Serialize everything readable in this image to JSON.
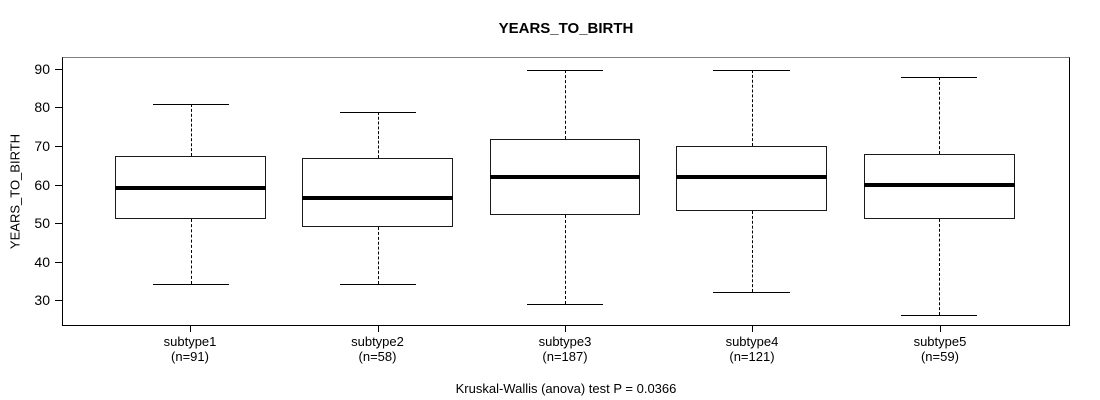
{
  "chart_data": {
    "type": "boxplot",
    "title": "YEARS_TO_BIRTH",
    "ylabel": "YEARS_TO_BIRTH",
    "xlabel": "",
    "ylim": [
      23.4,
      93.0
    ],
    "yticks": [
      30,
      40,
      50,
      60,
      70,
      80,
      90
    ],
    "grid": "off",
    "footnote": "Kruskal-Wallis (anova) test P = 0.0366",
    "groups": [
      {
        "label": "subtype1",
        "count_label": "(n=91)",
        "whisker_low": 34,
        "q1": 51,
        "median": 59,
        "q3": 67.5,
        "whisker_high": 81
      },
      {
        "label": "subtype2",
        "count_label": "(n=58)",
        "whisker_low": 34,
        "q1": 49,
        "median": 56.5,
        "q3": 67,
        "whisker_high": 79
      },
      {
        "label": "subtype3",
        "count_label": "(n=187)",
        "whisker_low": 29,
        "q1": 52,
        "median": 62,
        "q3": 72,
        "whisker_high": 90
      },
      {
        "label": "subtype4",
        "count_label": "(n=121)",
        "whisker_low": 32,
        "q1": 53,
        "median": 62,
        "q3": 70,
        "whisker_high": 90
      },
      {
        "label": "subtype5",
        "count_label": "(n=59)",
        "whisker_low": 26,
        "q1": 51,
        "median": 60,
        "q3": 68,
        "whisker_high": 88
      }
    ],
    "colors": {
      "box_border": "#000000",
      "median": "#000000",
      "whisker": "#000000",
      "frame": "#000000",
      "background": "#ffffff",
      "text": "#000000"
    }
  }
}
